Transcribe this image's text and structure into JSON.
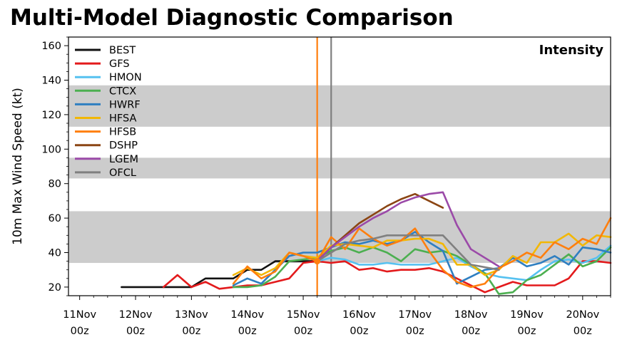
{
  "chart_data": {
    "type": "line",
    "title": "Multi-Model Diagnostic Comparison",
    "annotation": "Intensity",
    "xlabel": "",
    "ylabel": "10m Max Wind Speed (kt)",
    "x_unit": "days",
    "xlim": [
      -0.2,
      9.5
    ],
    "ylim": [
      15,
      165
    ],
    "yticks": [
      20,
      40,
      60,
      80,
      100,
      120,
      140,
      160
    ],
    "xticks": [
      {
        "value": 0,
        "label": [
          "11Nov",
          "00z"
        ]
      },
      {
        "value": 1,
        "label": [
          "12Nov",
          "00z"
        ]
      },
      {
        "value": 2,
        "label": [
          "13Nov",
          "00z"
        ]
      },
      {
        "value": 3,
        "label": [
          "14Nov",
          "00z"
        ]
      },
      {
        "value": 4,
        "label": [
          "15Nov",
          "00z"
        ]
      },
      {
        "value": 5,
        "label": [
          "16Nov",
          "00z"
        ]
      },
      {
        "value": 6,
        "label": [
          "17Nov",
          "00z"
        ]
      },
      {
        "value": 7,
        "label": [
          "18Nov",
          "00z"
        ]
      },
      {
        "value": 8,
        "label": [
          "19Nov",
          "00z"
        ]
      },
      {
        "value": 9,
        "label": [
          "20Nov",
          "00z"
        ]
      }
    ],
    "shaded_bands": [
      {
        "from": 34,
        "to": 64,
        "color": "#cccccc"
      },
      {
        "from": 83,
        "to": 95,
        "color": "#cccccc"
      },
      {
        "from": 113,
        "to": 137,
        "color": "#cccccc"
      }
    ],
    "vertical_lines": [
      {
        "x": 4.25,
        "color": "#ff7f0e"
      },
      {
        "x": 4.5,
        "color": "#7f7f7f"
      }
    ],
    "init_marker": {
      "x": 4.25,
      "y": 35,
      "color": "#ff7f0e"
    },
    "legend_position": "upper-left",
    "series": [
      {
        "name": "BEST",
        "color": "#111111",
        "x": [
          0.75,
          1.0,
          1.25,
          1.5,
          1.75,
          2.0,
          2.25,
          2.5,
          2.75,
          3.0,
          3.25,
          3.5,
          3.75,
          4.0,
          4.25
        ],
        "y": [
          20,
          20,
          20,
          20,
          20,
          20,
          25,
          25,
          25,
          30,
          30,
          35,
          35,
          35,
          35
        ]
      },
      {
        "name": "GFS",
        "color": "#e31a1c",
        "x": [
          1.5,
          1.75,
          2.0,
          2.25,
          2.5,
          2.75,
          3.0,
          3.25,
          3.5,
          3.75,
          4.0,
          4.25,
          4.5,
          4.75,
          5.0,
          5.25,
          5.5,
          5.75,
          6.0,
          6.25,
          6.5,
          6.75,
          7.0,
          7.25,
          7.5,
          7.75,
          8.0,
          8.25,
          8.5,
          8.75,
          9.0,
          9.25,
          9.5
        ],
        "y": [
          20,
          27,
          20,
          23,
          19,
          20,
          21,
          21,
          23,
          25,
          34,
          35,
          34,
          35,
          30,
          31,
          29,
          30,
          30,
          31,
          29,
          25,
          21,
          17,
          20,
          23,
          21,
          21,
          21,
          25,
          35,
          35,
          34
        ]
      },
      {
        "name": "HMON",
        "color": "#56c1f0",
        "x": [
          4.25,
          4.5,
          4.75,
          5.0,
          5.25,
          5.5,
          5.75,
          6.0,
          6.25,
          6.5,
          6.75,
          7.0,
          7.25,
          7.5,
          7.75,
          8.0,
          8.25,
          8.5,
          8.75,
          9.0,
          9.25,
          9.5
        ],
        "y": [
          35,
          37,
          36,
          33,
          33,
          34,
          33,
          33,
          33,
          35,
          37,
          32,
          28,
          26,
          25,
          24,
          30,
          35,
          36,
          34,
          37,
          44
        ]
      },
      {
        "name": "CTCX",
        "color": "#4caf50",
        "x": [
          2.75,
          3.0,
          3.25,
          3.5,
          3.75,
          4.0,
          4.25,
          4.5,
          4.75,
          5.0,
          5.25,
          5.5,
          5.75,
          6.0,
          6.25,
          6.5,
          6.75,
          7.0,
          7.25,
          7.5,
          7.75,
          8.0,
          8.25,
          8.5,
          8.75,
          9.0,
          9.25,
          9.5
        ],
        "y": [
          20,
          20,
          21,
          26,
          35,
          36,
          37,
          41,
          43,
          40,
          43,
          40,
          35,
          42,
          40,
          41,
          38,
          33,
          28,
          16,
          17,
          24,
          27,
          33,
          39,
          32,
          35,
          43
        ]
      },
      {
        "name": "HWRF",
        "color": "#2f7fc1",
        "x": [
          2.75,
          3.0,
          3.25,
          3.5,
          3.75,
          4.0,
          4.25,
          4.5,
          4.75,
          5.0,
          5.25,
          5.5,
          5.75,
          6.0,
          6.25,
          6.5,
          6.75,
          7.0,
          7.25,
          7.5,
          7.75,
          8.0,
          8.25,
          8.5,
          8.75,
          9.0,
          9.25,
          9.5
        ],
        "y": [
          21,
          25,
          22,
          30,
          38,
          40,
          40,
          43,
          46,
          45,
          47,
          45,
          47,
          52,
          46,
          41,
          22,
          26,
          30,
          31,
          37,
          32,
          34,
          38,
          33,
          43,
          42,
          40
        ]
      },
      {
        "name": "HFSA",
        "color": "#f2b705",
        "x": [
          2.75,
          3.0,
          3.25,
          3.5,
          3.75,
          4.0,
          4.25,
          4.5,
          4.75,
          5.0,
          5.25,
          5.5,
          5.75,
          6.0,
          6.25,
          6.5,
          6.75,
          7.0,
          7.25,
          7.5,
          7.75,
          8.0,
          8.25,
          8.5,
          8.75,
          9.0,
          9.25,
          9.5
        ],
        "y": [
          27,
          31,
          27,
          31,
          40,
          38,
          37,
          44,
          45,
          44,
          43,
          47,
          47,
          48,
          48,
          45,
          33,
          33,
          27,
          30,
          38,
          34,
          46,
          46,
          51,
          44,
          50,
          49
        ]
      },
      {
        "name": "HFSB",
        "color": "#ff7f0e",
        "x": [
          2.75,
          3.0,
          3.25,
          3.5,
          3.75,
          4.0,
          4.25,
          4.5,
          4.75,
          5.0,
          5.25,
          5.5,
          5.75,
          6.0,
          6.25,
          6.5,
          6.75,
          7.0,
          7.25,
          7.5,
          7.75,
          8.0,
          8.25,
          8.5,
          8.75,
          9.0,
          9.25,
          9.5
        ],
        "y": [
          22,
          32,
          25,
          29,
          40,
          38,
          35,
          49,
          42,
          54,
          48,
          44,
          47,
          54,
          41,
          30,
          23,
          20,
          22,
          31,
          35,
          40,
          37,
          46,
          42,
          48,
          45,
          60
        ]
      },
      {
        "name": "DSHP",
        "color": "#8b4513",
        "x": [
          4.25,
          4.5,
          4.75,
          5.0,
          5.25,
          5.5,
          5.75,
          6.0,
          6.25,
          6.5
        ],
        "y": [
          35,
          43,
          50,
          57,
          62,
          67,
          71,
          74,
          70,
          66
        ]
      },
      {
        "name": "LGEM",
        "color": "#9b4aa8",
        "x": [
          4.25,
          4.5,
          4.75,
          5.0,
          5.25,
          5.5,
          5.75,
          6.0,
          6.25,
          6.5,
          6.75,
          7.0,
          7.25,
          7.5
        ],
        "y": [
          35,
          43,
          49,
          55,
          60,
          64,
          69,
          72,
          74,
          75,
          56,
          42,
          37,
          32
        ]
      },
      {
        "name": "OFCL",
        "color": "#808080",
        "x": [
          4.25,
          4.5,
          4.75,
          5.0,
          5.25,
          5.5,
          5.75,
          6.0,
          6.25,
          6.5,
          7.0,
          7.5
        ],
        "y": [
          35,
          40,
          45,
          47,
          48,
          50,
          50,
          50,
          50,
          50,
          33,
          30
        ]
      }
    ]
  }
}
